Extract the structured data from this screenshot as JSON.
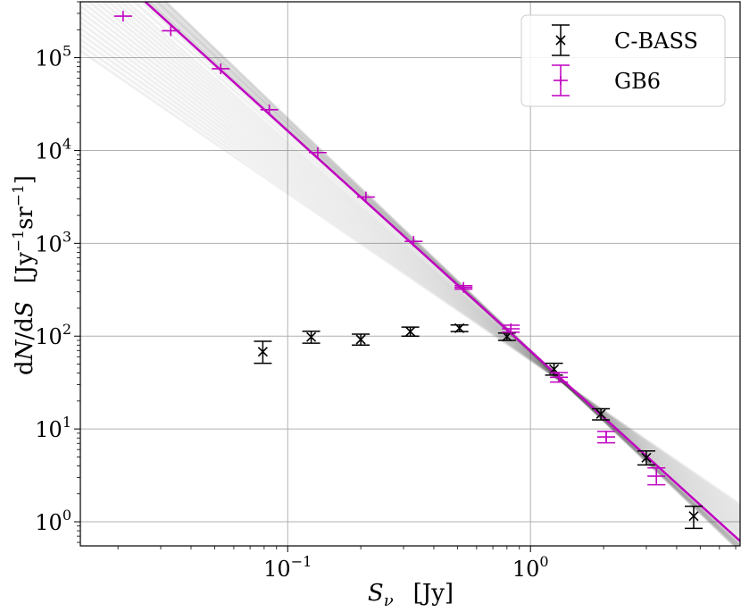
{
  "chart_data": {
    "type": "scatter",
    "xlabel": "S_ν [Jy]",
    "ylabel": "dN/dS [Jy^-1 sr^-1]",
    "xscale": "log",
    "yscale": "log",
    "xlim": [
      0.014,
      7.3
    ],
    "ylim": [
      0.55,
      400000
    ],
    "grid": true,
    "legend": "top-right",
    "x_ticks": [
      {
        "value": 0.1,
        "base": "10",
        "exp": "−1"
      },
      {
        "value": 1,
        "base": "10",
        "exp": "0"
      }
    ],
    "y_ticks": [
      {
        "value": 1,
        "base": "10",
        "exp": "0"
      },
      {
        "value": 10,
        "base": "10",
        "exp": "1"
      },
      {
        "value": 100,
        "base": "10",
        "exp": "2"
      },
      {
        "value": 1000,
        "base": "10",
        "exp": "3"
      },
      {
        "value": 10000,
        "base": "10",
        "exp": "4"
      },
      {
        "value": 100000,
        "base": "10",
        "exp": "5"
      }
    ],
    "series": [
      {
        "name": "C-BASS",
        "color": "#000000",
        "marker": "x",
        "x": [
          0.079,
          0.125,
          0.2,
          0.32,
          0.51,
          0.8,
          1.25,
          1.95,
          3.0,
          4.7
        ],
        "y": [
          68,
          98,
          92,
          112,
          122,
          99,
          44,
          14.5,
          4.9,
          1.15
        ],
        "yerr_low": [
          17,
          14,
          12,
          12,
          10,
          9,
          6,
          2,
          0.8,
          0.3
        ],
        "yerr_high": [
          20,
          15,
          13,
          13,
          10,
          9,
          7,
          2,
          0.9,
          0.32
        ]
      },
      {
        "name": "GB6",
        "color": "#c000c0",
        "marker": "+",
        "x": [
          0.021,
          0.033,
          0.053,
          0.084,
          0.133,
          0.21,
          0.33,
          0.53,
          0.83,
          1.31,
          2.05,
          3.3
        ],
        "y": [
          280000,
          195000,
          76000,
          27500,
          9500,
          3150,
          1050,
          335,
          120,
          36,
          8.2,
          3.1
        ],
        "yerr_low": [
          0,
          0,
          0,
          0,
          0,
          0,
          0,
          14,
          10,
          4,
          1.1,
          0.6
        ],
        "yerr_high": [
          0,
          0,
          0,
          0,
          0,
          0,
          0,
          15,
          11,
          4.5,
          1.2,
          0.7
        ]
      }
    ],
    "fit_line": {
      "color": "#c000c0",
      "points": [
        [
          0.024,
          480000
        ],
        [
          7.3,
          0.62
        ]
      ]
    },
    "fit_bundle": {
      "color": "#555555",
      "pivot": [
        1.4,
        30
      ],
      "slopes": [
        -2.5,
        -2.45,
        -2.4,
        -2.36,
        -2.32,
        -2.28,
        -2.25,
        -2.22,
        -2.19,
        -2.16,
        -2.13,
        -2.1,
        -2.07,
        -2.04,
        -2.01,
        -1.98,
        -1.95,
        -1.92,
        -1.89,
        -1.86,
        -1.83,
        -1.8
      ]
    }
  }
}
